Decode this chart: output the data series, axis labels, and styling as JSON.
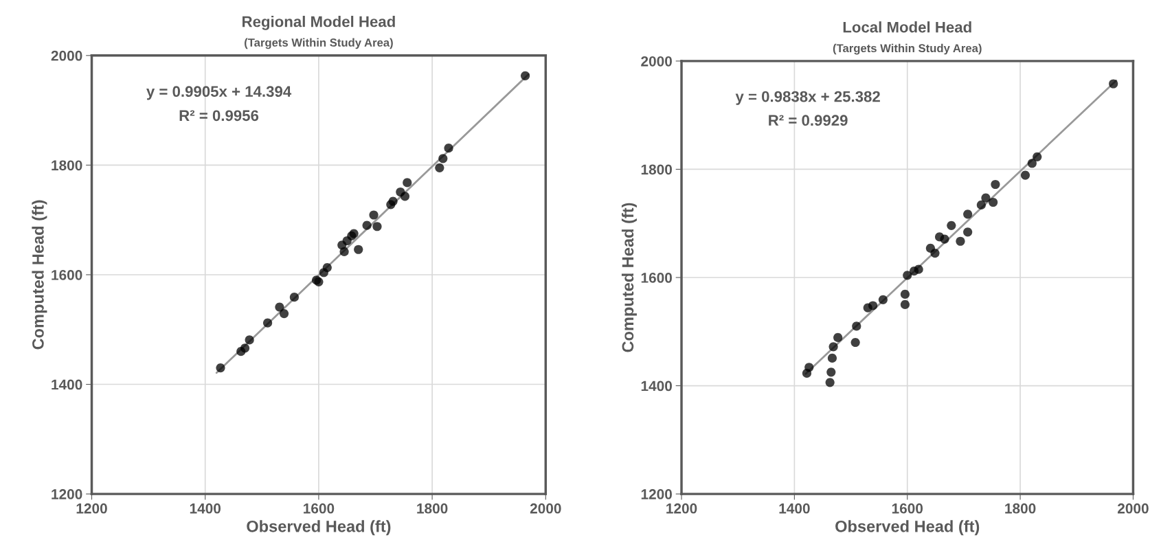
{
  "chart_data": [
    {
      "type": "scatter",
      "title": "Regional Model Head",
      "subtitle": "(Targets Within Study Area)",
      "xlabel": "Observed Head (ft)",
      "ylabel": "Computed Head (ft)",
      "annotations": [
        "y = 0.9905x + 14.394",
        "R² = 0.9956"
      ],
      "xlim": [
        1200,
        2000
      ],
      "ylim": [
        1200,
        2000
      ],
      "xticks": [
        1200,
        1400,
        1600,
        1800,
        2000
      ],
      "yticks": [
        1200,
        1400,
        1600,
        1800,
        2000
      ],
      "grid": true,
      "series": [
        {
          "marker": "circle",
          "color": "#000000",
          "x": [
            1427,
            1463,
            1470,
            1478,
            1510,
            1531,
            1539,
            1557,
            1596,
            1600,
            1609,
            1615,
            1641,
            1645,
            1650,
            1658,
            1662,
            1670,
            1685,
            1697,
            1703,
            1727,
            1731,
            1744,
            1752,
            1756,
            1813,
            1819,
            1829,
            1964
          ],
          "values": [
            1430,
            1460,
            1466,
            1481,
            1512,
            1541,
            1529,
            1559,
            1590,
            1587,
            1604,
            1613,
            1654,
            1642,
            1662,
            1671,
            1675,
            1646,
            1690,
            1709,
            1688,
            1728,
            1734,
            1751,
            1743,
            1768,
            1795,
            1812,
            1831,
            1963
          ]
        },
        {
          "type": "line",
          "marker": "none",
          "color": "#999999",
          "x": [
            1420,
            1970
          ],
          "values": [
            1421,
            1966
          ]
        }
      ]
    },
    {
      "type": "scatter",
      "title": "Local Model Head",
      "subtitle": "(Targets Within Study Area)",
      "xlabel": "Observed Head (ft)",
      "ylabel": "Computed Head (ft)",
      "annotations": [
        "y = 0.9838x + 25.382",
        "R² = 0.9929"
      ],
      "xlim": [
        1200,
        2000
      ],
      "ylim": [
        1200,
        2000
      ],
      "xticks": [
        1200,
        1400,
        1600,
        1800,
        2000
      ],
      "yticks": [
        1200,
        1400,
        1600,
        1800,
        2000
      ],
      "grid": true,
      "series": [
        {
          "marker": "circle",
          "color": "#000000",
          "x": [
            1422,
            1426,
            1463,
            1465,
            1467,
            1469,
            1477,
            1508,
            1510,
            1530,
            1539,
            1557,
            1596,
            1596,
            1600,
            1612,
            1620,
            1641,
            1649,
            1657,
            1666,
            1678,
            1694,
            1707,
            1707,
            1731,
            1739,
            1752,
            1756,
            1809,
            1821,
            1830,
            1965
          ],
          "values": [
            1423,
            1434,
            1406,
            1425,
            1451,
            1472,
            1489,
            1480,
            1510,
            1544,
            1548,
            1559,
            1550,
            1569,
            1604,
            1612,
            1615,
            1654,
            1645,
            1675,
            1671,
            1696,
            1667,
            1684,
            1717,
            1734,
            1747,
            1739,
            1772,
            1789,
            1811,
            1823,
            1958
          ]
        },
        {
          "type": "line",
          "marker": "none",
          "color": "#999999",
          "x": [
            1420,
            1970
          ],
          "values": [
            1422,
            1964
          ]
        }
      ]
    }
  ]
}
